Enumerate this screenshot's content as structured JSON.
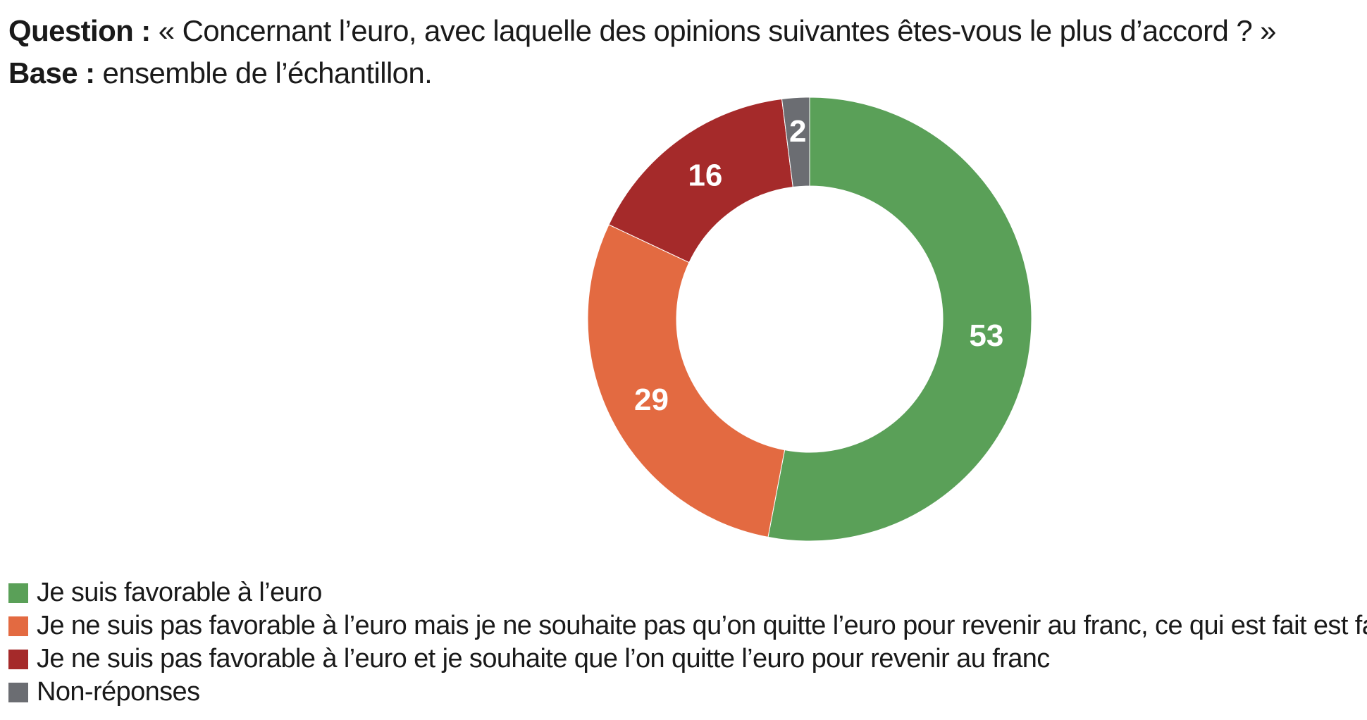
{
  "header": {
    "question_key": "Question :",
    "question_text": "« Concernant l’euro, avec laquelle des opinions suivantes êtes-vous le plus d’accord ? »",
    "base_key": "Base :",
    "base_text": "ensemble de l’échantillon."
  },
  "chart_data": {
    "type": "pie",
    "donut": true,
    "title": "« Concernant l’euro, avec laquelle des opinions suivantes êtes-vous le plus d’accord ? »",
    "subtitle": "ensemble de l’échantillon.",
    "legend_position": "bottom-left",
    "labels": [
      "Je suis favorable à l’euro",
      "Je ne suis pas favorable à l’euro mais je ne souhaite pas qu’on quitte l’euro pour revenir au franc, ce qui est fait est fait",
      "Je ne suis pas favorable à l’euro et je souhaite que l’on quitte l’euro pour revenir au franc",
      "Non-réponses"
    ],
    "values": [
      53,
      29,
      16,
      2
    ],
    "value_labels": [
      "53",
      "29",
      "16",
      "2"
    ],
    "colors": [
      "#5aa058",
      "#e36a41",
      "#a52a2a",
      "#6b6d72"
    ]
  }
}
